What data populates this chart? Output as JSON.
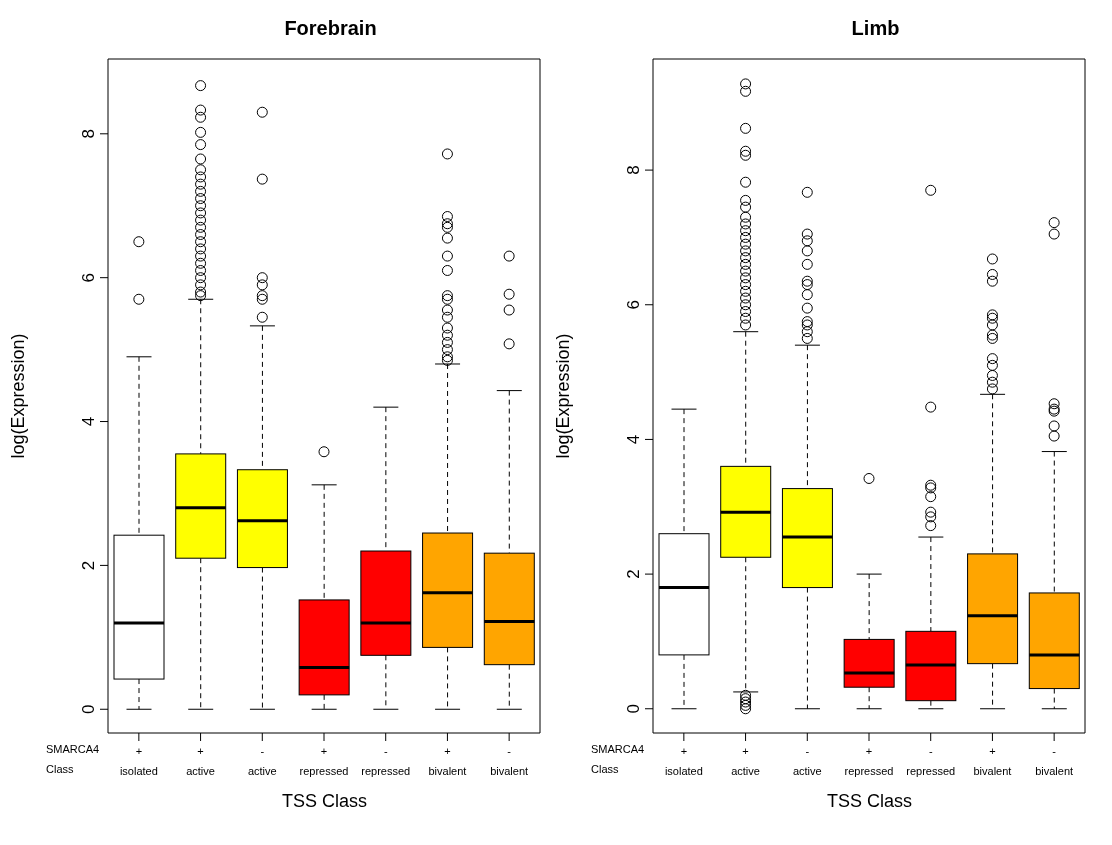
{
  "chart_data": [
    {
      "type": "box",
      "title": "Forebrain",
      "xlabel": "TSS Class",
      "ylabel": "log(Expression)",
      "annotations": [
        "SMARCA4",
        "Class"
      ],
      "categories": [
        "+\nisolated",
        "+\nactive",
        "-\nactive",
        "+\nrepressed",
        "-\nrepressed",
        "+\nbivalent",
        "-\nbivalent"
      ],
      "colors": [
        "#ffffff",
        "#ffff00",
        "#ffff00",
        "#ff0000",
        "#ff0000",
        "#ffa500",
        "#ffa500"
      ],
      "ylim": [
        -0.33,
        9.04
      ],
      "yticks": [
        0,
        2,
        4,
        6,
        8
      ],
      "boxes": [
        {
          "low": 0,
          "q1": 0.42,
          "median": 1.2,
          "q3": 2.42,
          "high": 4.9,
          "outliers": [
            5.7,
            6.5
          ]
        },
        {
          "low": 0,
          "q1": 2.1,
          "median": 2.8,
          "q3": 3.55,
          "high": 5.7,
          "outliers": [
            5.75,
            5.8,
            5.9,
            6.0,
            6.1,
            6.2,
            6.3,
            6.4,
            6.5,
            6.6,
            6.7,
            6.8,
            6.9,
            7.0,
            7.1,
            7.2,
            7.3,
            7.4,
            7.5,
            7.65,
            7.85,
            8.02,
            8.23,
            8.33,
            8.67
          ]
        },
        {
          "low": 0,
          "q1": 1.97,
          "median": 2.62,
          "q3": 3.33,
          "high": 5.33,
          "outliers": [
            5.45,
            5.7,
            5.75,
            5.9,
            6.0,
            7.37,
            8.3
          ]
        },
        {
          "low": 0,
          "q1": 0.2,
          "median": 0.58,
          "q3": 1.52,
          "high": 3.12,
          "outliers": [
            3.58
          ]
        },
        {
          "low": 0,
          "q1": 0.75,
          "median": 1.2,
          "q3": 2.2,
          "high": 4.2
        },
        {
          "low": 0,
          "q1": 0.86,
          "median": 1.62,
          "q3": 2.45,
          "high": 4.8,
          "outliers": [
            4.85,
            4.9,
            5.0,
            5.1,
            5.2,
            5.3,
            5.45,
            5.55,
            5.7,
            5.75,
            6.1,
            6.3,
            6.55,
            6.7,
            6.75,
            6.85,
            7.72
          ]
        },
        {
          "low": 0,
          "q1": 0.62,
          "median": 1.22,
          "q3": 2.17,
          "high": 4.43,
          "outliers": [
            5.08,
            5.55,
            5.77,
            6.3
          ]
        }
      ]
    },
    {
      "type": "box",
      "title": "Limb",
      "xlabel": "TSS Class",
      "ylabel": "log(Expression)",
      "annotations": [
        "SMARCA4",
        "Class"
      ],
      "categories": [
        "+\nisolated",
        "+\nactive",
        "-\nactive",
        "+\nrepressed",
        "-\nrepressed",
        "+\nbivalent",
        "-\nbivalent"
      ],
      "colors": [
        "#ffffff",
        "#ffff00",
        "#ffff00",
        "#ff0000",
        "#ff0000",
        "#ffa500",
        "#ffa500"
      ],
      "ylim": [
        -0.36,
        9.65
      ],
      "yticks": [
        0,
        2,
        4,
        6,
        8
      ],
      "boxes": [
        {
          "low": 0,
          "q1": 0.8,
          "median": 1.8,
          "q3": 2.6,
          "high": 4.45
        },
        {
          "low": 0.25,
          "q1": 2.25,
          "median": 2.92,
          "q3": 3.6,
          "high": 5.6,
          "outliers": [
            0.0,
            0.05,
            0.1,
            0.15,
            0.2,
            5.7,
            5.8,
            5.9,
            6.0,
            6.1,
            6.2,
            6.3,
            6.4,
            6.5,
            6.6,
            6.7,
            6.8,
            6.9,
            7.0,
            7.1,
            7.2,
            7.3,
            7.45,
            7.55,
            7.82,
            8.22,
            8.28,
            8.62,
            9.17,
            9.28
          ]
        },
        {
          "low": 0,
          "q1": 1.8,
          "median": 2.55,
          "q3": 3.27,
          "high": 5.4,
          "outliers": [
            5.5,
            5.6,
            5.7,
            5.75,
            5.95,
            6.15,
            6.3,
            6.35,
            6.6,
            6.8,
            6.95,
            7.05,
            7.67
          ]
        },
        {
          "low": 0,
          "q1": 0.32,
          "median": 0.53,
          "q3": 1.03,
          "high": 2.0,
          "outliers": [
            3.42
          ]
        },
        {
          "low": 0,
          "q1": 0.12,
          "median": 0.65,
          "q3": 1.15,
          "high": 2.55,
          "outliers": [
            2.72,
            2.85,
            2.92,
            3.15,
            3.28,
            3.32,
            4.48,
            7.7
          ]
        },
        {
          "low": 0,
          "q1": 0.67,
          "median": 1.38,
          "q3": 2.3,
          "high": 4.67,
          "outliers": [
            4.75,
            4.85,
            4.95,
            5.1,
            5.2,
            5.5,
            5.55,
            5.7,
            5.8,
            5.85,
            6.35,
            6.45,
            6.68
          ]
        },
        {
          "low": 0,
          "q1": 0.3,
          "median": 0.8,
          "q3": 1.72,
          "high": 3.82,
          "outliers": [
            4.05,
            4.2,
            4.42,
            4.45,
            4.53,
            7.05,
            7.22
          ]
        }
      ]
    }
  ]
}
